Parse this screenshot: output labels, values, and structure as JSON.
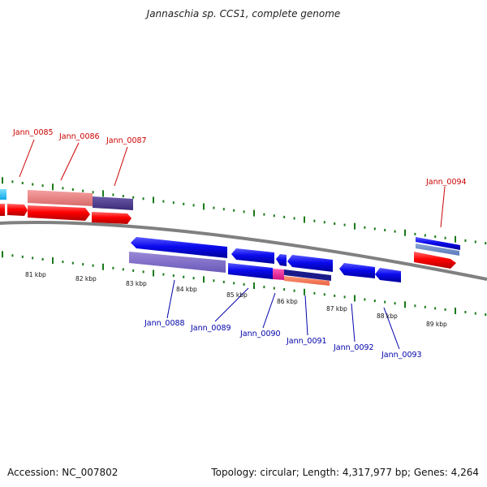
{
  "title": "Jannaschia sp. CCS1, complete genome",
  "footer": {
    "accession": "Accession: NC_007802",
    "summary": "Topology: circular; Length: 4,317,977 bp; Genes: 4,264"
  },
  "scale_labels": [
    "81 kbp",
    "82 kbp",
    "83 kbp",
    "84 kbp",
    "85 kbp",
    "86 kbp",
    "87 kbp",
    "88 kbp",
    "89 kbp"
  ],
  "genes_top": [
    "Jann_0085",
    "Jann_0086",
    "Jann_0087",
    "Jann_0094"
  ],
  "genes_bottom": [
    "Jann_0088",
    "Jann_0089",
    "Jann_0090",
    "Jann_0091",
    "Jann_0092",
    "Jann_0093"
  ],
  "colors": {
    "forward": "#ff0000",
    "reverse": "#0000ee",
    "tick": "#1a7a1a",
    "backbone": "#808080",
    "label_top": "#cc0000",
    "label_bottom": "#0000aa"
  }
}
